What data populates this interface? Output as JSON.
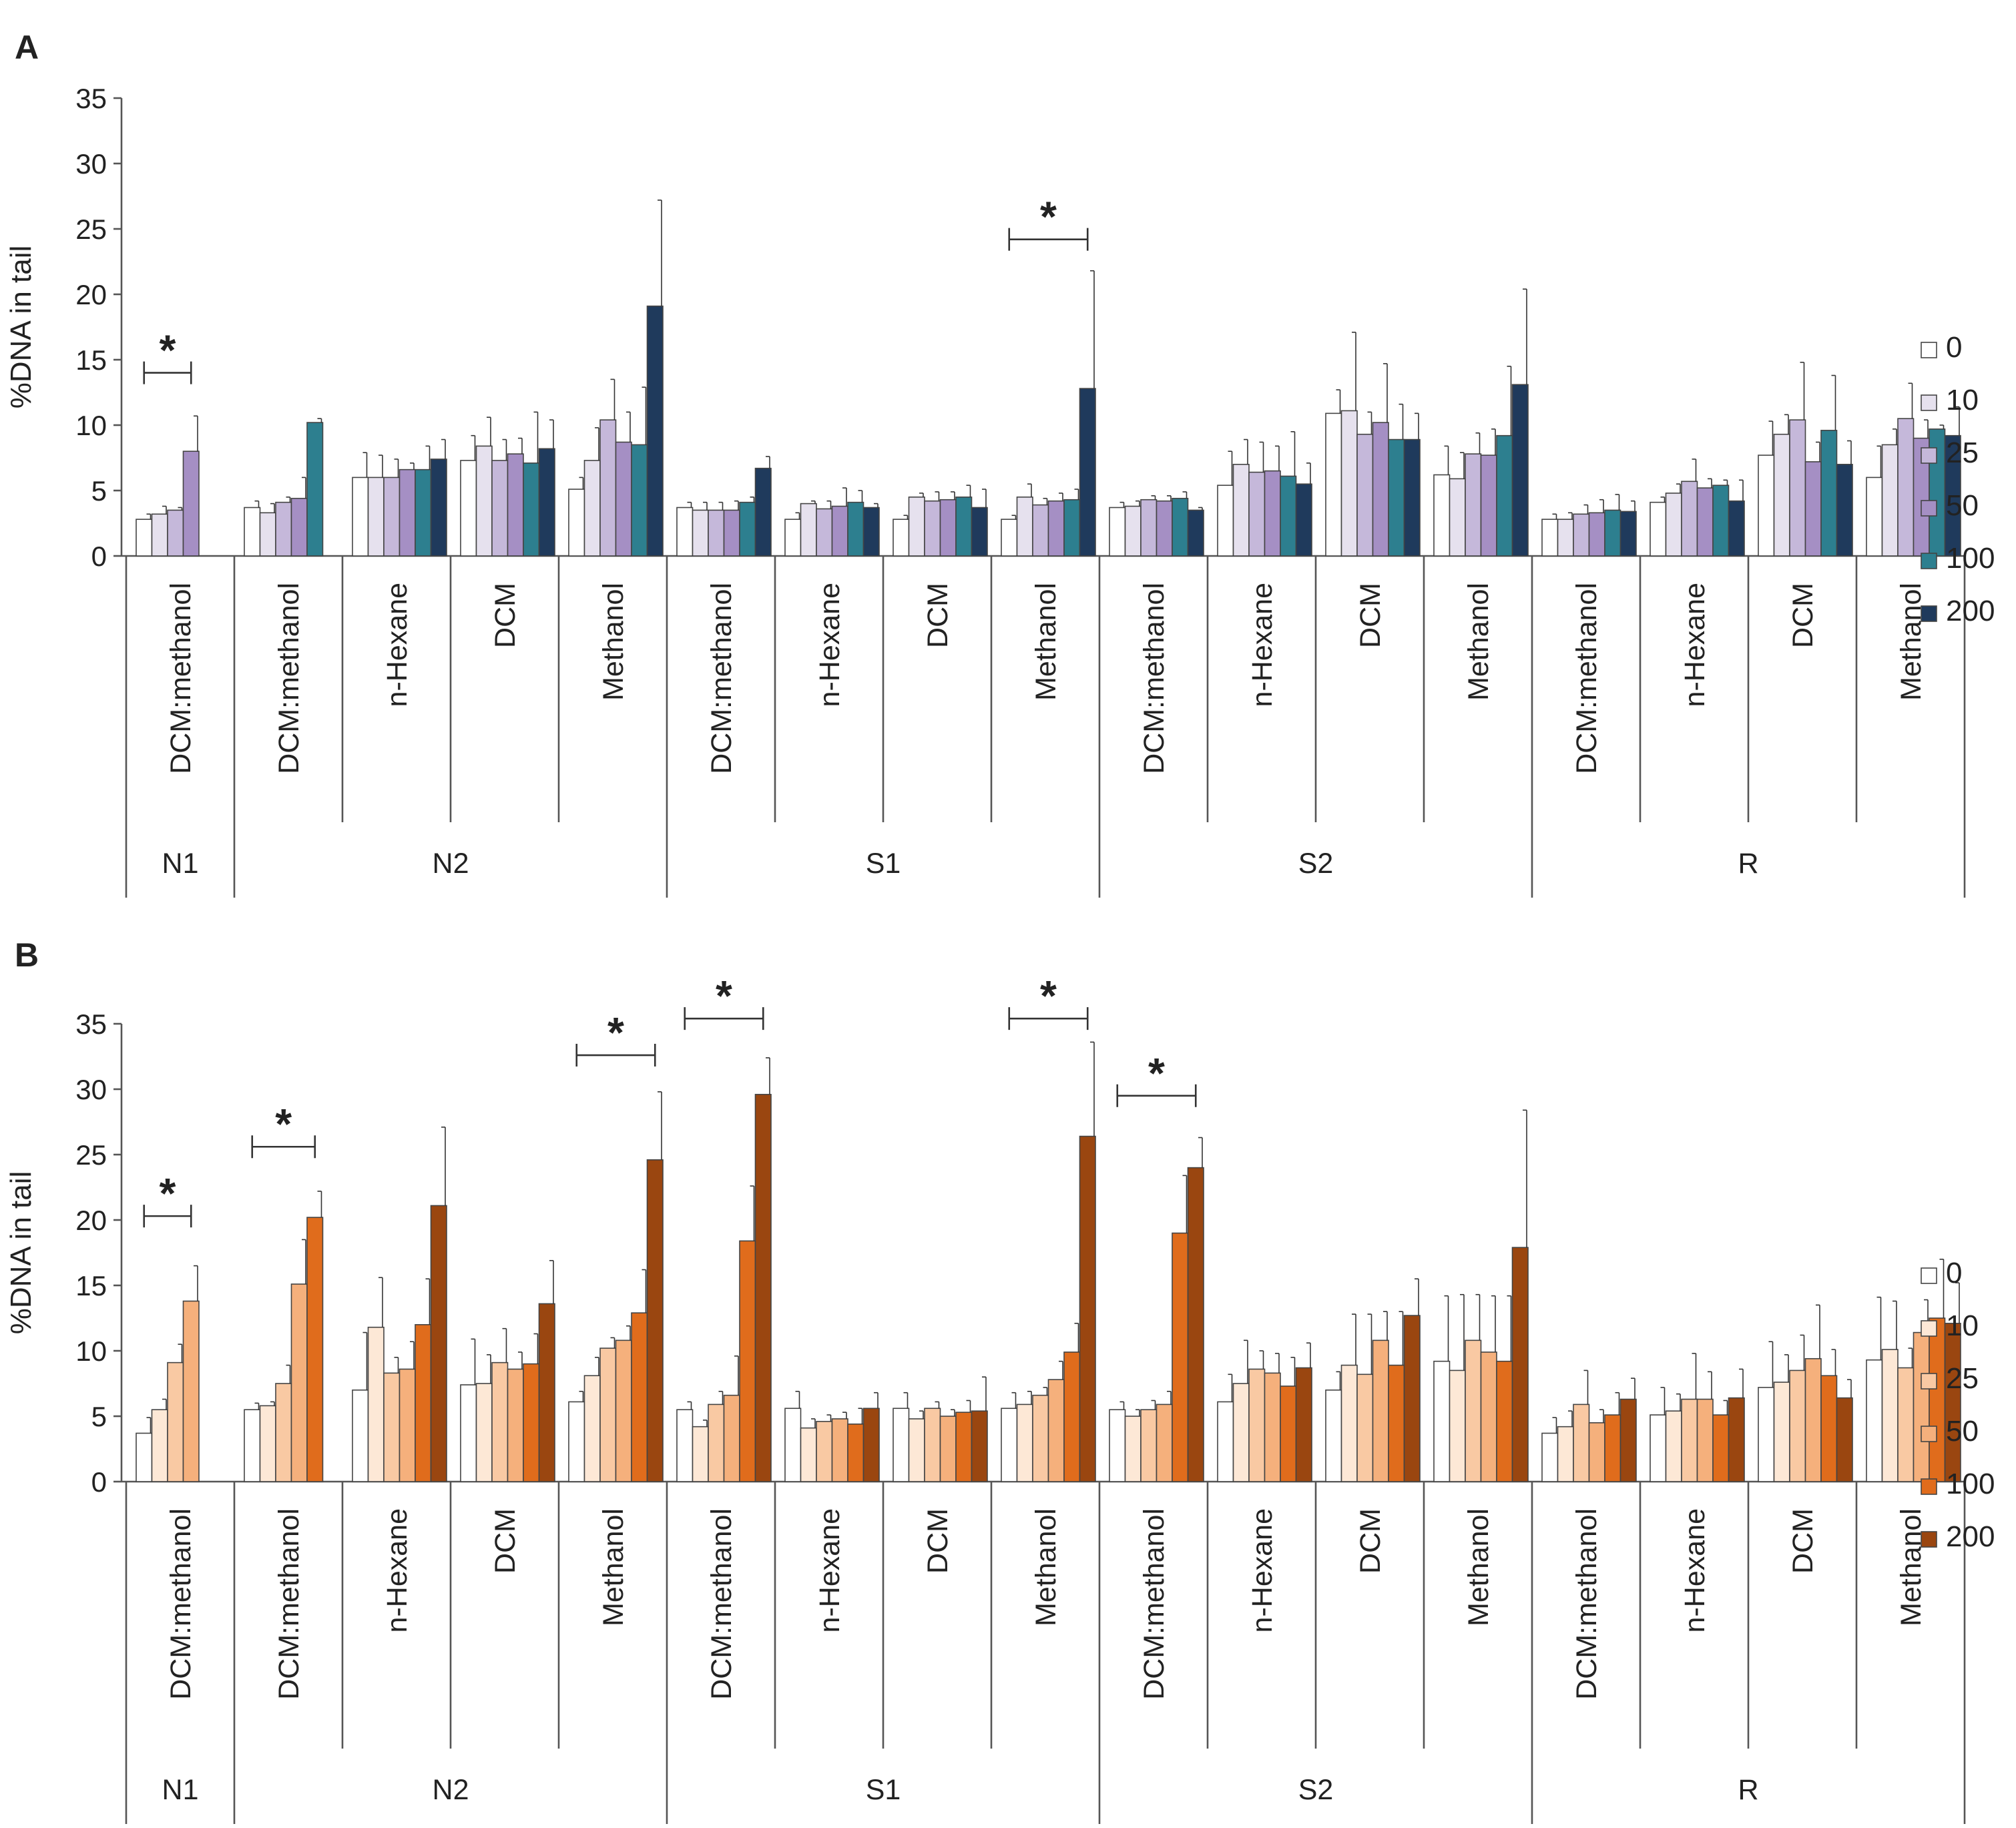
{
  "concentrations": [
    "0",
    "10",
    "25",
    "50",
    "100",
    "200"
  ],
  "ylabel": "%DNA in tail",
  "yticks": [
    0,
    5,
    10,
    15,
    20,
    25,
    30,
    35
  ],
  "ylim": [
    0,
    35
  ],
  "categories": [
    {
      "group": "N1",
      "solvent": "DCM:methanol"
    },
    {
      "group": "N2",
      "solvent": "DCM:methanol"
    },
    {
      "group": "N2",
      "solvent": "n-Hexane"
    },
    {
      "group": "N2",
      "solvent": "DCM"
    },
    {
      "group": "N2",
      "solvent": "Methanol"
    },
    {
      "group": "S1",
      "solvent": "DCM:methanol"
    },
    {
      "group": "S1",
      "solvent": "n-Hexane"
    },
    {
      "group": "S1",
      "solvent": "DCM"
    },
    {
      "group": "S1",
      "solvent": "Methanol"
    },
    {
      "group": "S2",
      "solvent": "DCM:methanol"
    },
    {
      "group": "S2",
      "solvent": "n-Hexane"
    },
    {
      "group": "S2",
      "solvent": "DCM"
    },
    {
      "group": "S2",
      "solvent": "Methanol"
    },
    {
      "group": "R",
      "solvent": "DCM:methanol"
    },
    {
      "group": "R",
      "solvent": "n-Hexane"
    },
    {
      "group": "R",
      "solvent": "DCM"
    },
    {
      "group": "R",
      "solvent": "Methanol"
    }
  ],
  "groups": [
    {
      "name": "N1",
      "span": 1
    },
    {
      "name": "N2",
      "span": 4
    },
    {
      "name": "S1",
      "span": 4
    },
    {
      "name": "S2",
      "span": 4
    },
    {
      "name": "R",
      "span": 4
    }
  ],
  "chart_data": [
    {
      "panel": "A",
      "type": "bar",
      "ylabel": "%DNA in tail",
      "ylim": [
        0,
        35
      ],
      "colors": [
        "#ffffff",
        "#e6e1ee",
        "#c5b8da",
        "#a58fc4",
        "#2d7f8f",
        "#1f3a5c"
      ],
      "series_names": [
        "0",
        "10",
        "25",
        "50",
        "100",
        "200"
      ],
      "values": [
        [
          2.8,
          3.2,
          3.5,
          8.0,
          null,
          null
        ],
        [
          3.7,
          3.3,
          4.1,
          4.4,
          10.2,
          null
        ],
        [
          6.0,
          6.0,
          6.0,
          6.6,
          6.6,
          7.4
        ],
        [
          7.3,
          8.4,
          7.3,
          7.8,
          7.1,
          8.2
        ],
        [
          5.1,
          7.3,
          10.4,
          8.7,
          8.5,
          19.1
        ],
        [
          3.7,
          3.5,
          3.5,
          3.5,
          4.1,
          6.7
        ],
        [
          2.8,
          4.0,
          3.6,
          3.8,
          4.1,
          3.7
        ],
        [
          2.8,
          4.5,
          4.2,
          4.3,
          4.5,
          3.7
        ],
        [
          2.8,
          4.5,
          3.9,
          4.2,
          4.3,
          12.8
        ],
        [
          3.7,
          3.8,
          4.3,
          4.2,
          4.4,
          3.5
        ],
        [
          5.4,
          7.0,
          6.4,
          6.5,
          6.1,
          5.5
        ],
        [
          10.9,
          11.1,
          9.3,
          10.2,
          8.9,
          8.9
        ],
        [
          6.2,
          5.9,
          7.8,
          7.7,
          9.2,
          13.1
        ],
        [
          2.8,
          2.8,
          3.2,
          3.3,
          3.5,
          3.4
        ],
        [
          4.1,
          4.8,
          5.7,
          5.2,
          5.4,
          4.2
        ],
        [
          7.7,
          9.3,
          10.4,
          7.2,
          9.6,
          7.0
        ],
        [
          6.0,
          8.5,
          10.5,
          9.0,
          9.7,
          9.2
        ]
      ],
      "errors": [
        [
          0.4,
          0.6,
          0.2,
          2.7,
          null,
          null
        ],
        [
          0.5,
          0.7,
          0.4,
          1.6,
          0.3,
          null
        ],
        [
          1.9,
          1.7,
          1.4,
          0.5,
          1.8,
          1.5
        ],
        [
          1.9,
          2.2,
          1.6,
          1.2,
          3.9,
          2.2
        ],
        [
          0.9,
          2.5,
          3.1,
          2.3,
          4.4,
          8.1
        ],
        [
          0.4,
          0.6,
          0.6,
          0.7,
          0.4,
          0.9
        ],
        [
          0.5,
          0.2,
          0.6,
          1.4,
          0.9,
          0.3
        ],
        [
          0.3,
          0.3,
          0.7,
          0.6,
          0.9,
          1.4
        ],
        [
          0.3,
          1.0,
          0.5,
          0.6,
          0.8,
          9.0
        ],
        [
          0.4,
          0.4,
          0.3,
          0.4,
          0.5,
          0.2
        ],
        [
          2.6,
          1.9,
          2.3,
          1.9,
          3.4,
          1.6
        ],
        [
          1.8,
          6.0,
          1.7,
          4.5,
          2.7,
          2.0
        ],
        [
          2.2,
          2.0,
          1.6,
          2.0,
          5.3,
          7.3
        ],
        [
          0.4,
          0.5,
          0.7,
          1.0,
          1.2,
          0.8
        ],
        [
          0.4,
          0.7,
          1.7,
          0.7,
          0.4,
          1.6
        ],
        [
          2.6,
          1.5,
          4.4,
          1.5,
          4.2,
          1.8
        ],
        [
          2.4,
          1.2,
          2.7,
          1.4,
          0.3,
          2.2
        ]
      ],
      "significance": [
        {
          "category": 0,
          "from": 0,
          "to": 3,
          "y_value": 14.0,
          "label": "*"
        },
        {
          "category": 8,
          "from": 0,
          "to": 5,
          "y_value": 24.2,
          "label": "*"
        }
      ]
    },
    {
      "panel": "B",
      "type": "bar",
      "ylabel": "%DNA in tail",
      "ylim": [
        0,
        35
      ],
      "colors": [
        "#ffffff",
        "#fde8d6",
        "#f9c9a3",
        "#f5b07c",
        "#e06c1c",
        "#9a4610"
      ],
      "series_names": [
        "0",
        "10",
        "25",
        "50",
        "100",
        "200"
      ],
      "values": [
        [
          3.7,
          5.5,
          9.1,
          13.8,
          null,
          null
        ],
        [
          5.5,
          5.8,
          7.5,
          15.1,
          20.2,
          null
        ],
        [
          7.0,
          11.8,
          8.3,
          8.6,
          12.0,
          21.1
        ],
        [
          7.4,
          7.5,
          9.1,
          8.6,
          9.0,
          13.6
        ],
        [
          6.1,
          8.1,
          10.2,
          10.8,
          12.9,
          24.6
        ],
        [
          5.5,
          4.2,
          5.9,
          6.6,
          18.4,
          29.6
        ],
        [
          5.6,
          4.1,
          4.6,
          4.8,
          4.4,
          5.6
        ],
        [
          5.6,
          4.8,
          5.6,
          5.0,
          5.3,
          5.4
        ],
        [
          5.6,
          5.9,
          6.6,
          7.8,
          9.9,
          26.4
        ],
        [
          5.5,
          5.0,
          5.5,
          5.9,
          19.0,
          24.0
        ],
        [
          6.1,
          7.5,
          8.6,
          8.3,
          7.3,
          8.7
        ],
        [
          7.0,
          8.9,
          8.2,
          10.8,
          8.9,
          12.7
        ],
        [
          9.2,
          8.5,
          10.8,
          9.9,
          9.2,
          17.9
        ],
        [
          3.7,
          4.2,
          5.9,
          4.5,
          5.1,
          6.3
        ],
        [
          5.1,
          5.4,
          6.3,
          6.3,
          5.1,
          6.4
        ],
        [
          7.2,
          7.6,
          8.5,
          9.4,
          8.1,
          6.4
        ],
        [
          9.3,
          10.1,
          8.7,
          11.4,
          12.5,
          12.1
        ]
      ],
      "errors": [
        [
          1.2,
          0.8,
          1.4,
          2.7,
          null,
          null
        ],
        [
          0.5,
          0.3,
          1.4,
          3.4,
          2.0,
          null
        ],
        [
          4.4,
          3.8,
          1.2,
          2.1,
          3.5,
          6.0
        ],
        [
          3.5,
          2.2,
          2.6,
          1.3,
          2.3,
          3.3
        ],
        [
          0.8,
          1.4,
          0.8,
          1.1,
          3.3,
          5.2
        ],
        [
          0.6,
          0.5,
          1.0,
          3.0,
          4.2,
          2.8
        ],
        [
          1.3,
          0.7,
          0.5,
          0.5,
          1.2,
          1.2
        ],
        [
          1.2,
          0.6,
          0.5,
          0.5,
          0.9,
          2.6
        ],
        [
          1.2,
          1.0,
          0.6,
          1.4,
          2.2,
          7.2
        ],
        [
          0.6,
          0.5,
          0.7,
          1.0,
          4.4,
          2.3
        ],
        [
          2.1,
          3.3,
          1.4,
          1.5,
          2.2,
          1.9
        ],
        [
          1.4,
          3.9,
          4.6,
          2.2,
          4.1,
          2.8
        ],
        [
          5.0,
          5.8,
          3.5,
          4.3,
          5.0,
          10.5
        ],
        [
          1.2,
          1.2,
          2.6,
          1.0,
          1.7,
          1.6
        ],
        [
          2.1,
          1.3,
          3.5,
          2.1,
          1.1,
          2.2
        ],
        [
          3.5,
          2.1,
          2.7,
          4.1,
          2.0,
          1.4
        ],
        [
          4.8,
          3.7,
          1.5,
          2.5,
          4.5,
          3.1
        ]
      ],
      "significance": [
        {
          "category": 0,
          "from": 0,
          "to": 3,
          "y_value": 20.3,
          "label": "*"
        },
        {
          "category": 1,
          "from": 0,
          "to": 4,
          "y_value": 25.6,
          "label": "*"
        },
        {
          "category": 4,
          "from": 0,
          "to": 5,
          "y_value": 32.6,
          "label": "*"
        },
        {
          "category": 5,
          "from": 0,
          "to": 5,
          "y_value": 35.4,
          "label": "*"
        },
        {
          "category": 8,
          "from": 0,
          "to": 5,
          "y_value": 35.4,
          "label": "*"
        },
        {
          "category": 9,
          "from": 0,
          "to": 5,
          "y_value": 29.5,
          "label": "*"
        }
      ]
    }
  ]
}
